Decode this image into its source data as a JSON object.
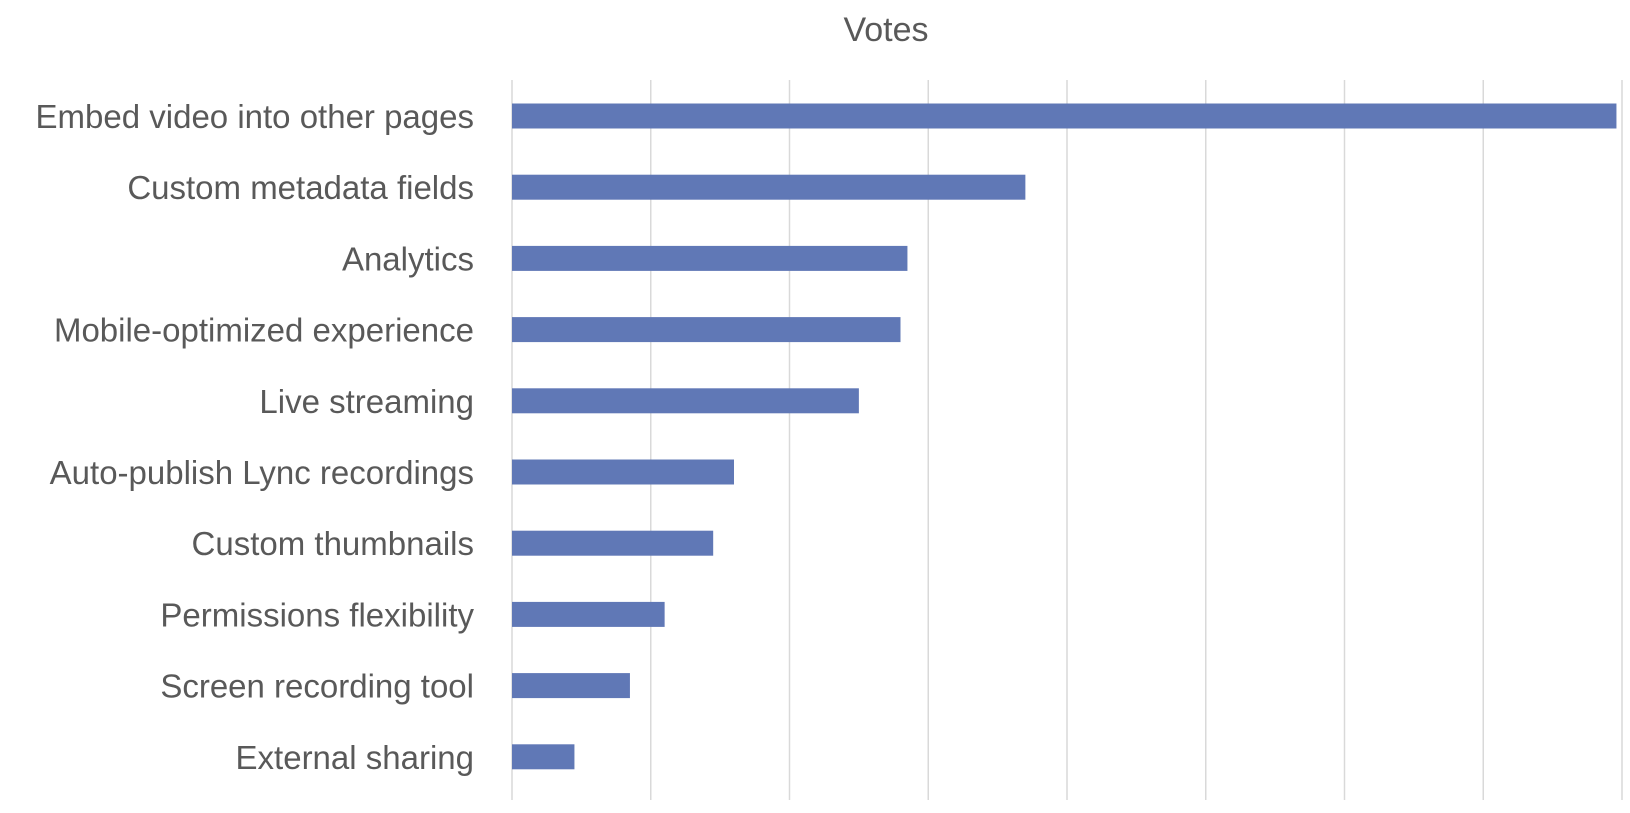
{
  "chart_data": {
    "type": "bar",
    "orientation": "horizontal",
    "title": "Votes",
    "xlabel": "",
    "ylabel": "",
    "categories": [
      "Embed video into other pages",
      "Custom metadata fields",
      "Analytics",
      "Mobile-optimized experience",
      "Live streaming",
      "Auto-publish Lync recordings",
      "Custom thumbnails",
      "Permissions flexibility",
      "Screen recording tool",
      "External sharing"
    ],
    "values": [
      159.2,
      74.0,
      57.0,
      56.0,
      50.0,
      32.0,
      29.0,
      22.0,
      17.0,
      9.0
    ],
    "xlim": [
      0,
      160
    ],
    "gridline_values": [
      0,
      20,
      40,
      60,
      80,
      100,
      120,
      140,
      160
    ],
    "tick_labels_visible": false,
    "grid": true,
    "legend": "none",
    "colors": {
      "bar": "#6078b6",
      "grid": "#d9d9d9",
      "text": "#595959"
    }
  }
}
